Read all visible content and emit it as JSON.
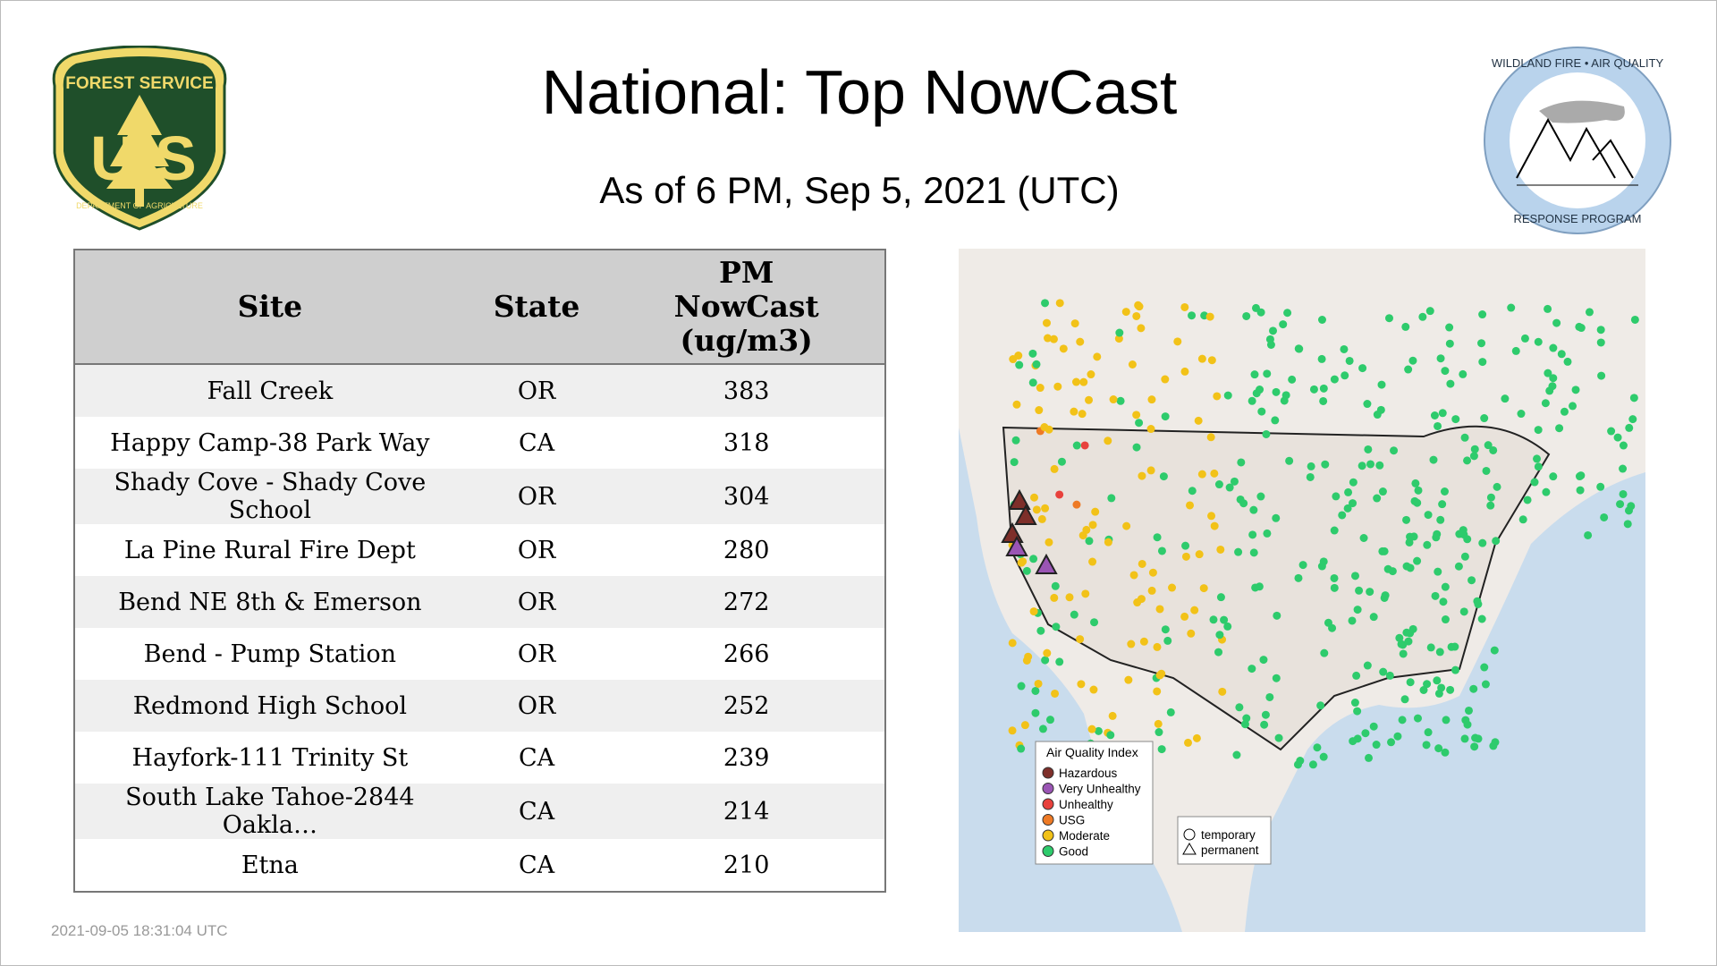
{
  "header": {
    "title": "National: Top NowCast",
    "subtitle": "As of  6 PM, Sep  5, 2021 (UTC)"
  },
  "logos": {
    "forest_service": {
      "top": "FOREST SERVICE",
      "letters": [
        "U",
        "S"
      ],
      "bottom": "DEPARTMENT OF AGRICULTURE"
    },
    "wildland": {
      "top": "WILDLAND FIRE • AIR QUALITY",
      "bottom": "RESPONSE PROGRAM"
    }
  },
  "table": {
    "columns": [
      "Site",
      "State",
      "PM NowCast (ug/m3)"
    ],
    "rows": [
      [
        "Fall Creek",
        "OR",
        383
      ],
      [
        "Happy Camp-38 Park Way",
        "CA",
        318
      ],
      [
        "Shady Cove - Shady Cove School",
        "OR",
        304
      ],
      [
        "La Pine Rural Fire Dept",
        "OR",
        280
      ],
      [
        "Bend NE 8th & Emerson",
        "OR",
        272
      ],
      [
        "Bend - Pump Station",
        "OR",
        266
      ],
      [
        "Redmond High School",
        "OR",
        252
      ],
      [
        "Hayfork-111 Trinity St",
        "CA",
        239
      ],
      [
        "South Lake Tahoe-2844 Oakla…",
        "CA",
        214
      ],
      [
        "Etna",
        "CA",
        210
      ]
    ]
  },
  "map": {
    "legend": {
      "title": "Air Quality Index",
      "items": [
        {
          "label": "Hazardous",
          "color": "#7e2f2a"
        },
        {
          "label": "Very Unhealthy",
          "color": "#9a55b4"
        },
        {
          "label": "Unhealthy",
          "color": "#e8413c"
        },
        {
          "label": "USG",
          "color": "#ee7a25"
        },
        {
          "label": "Moderate",
          "color": "#f2c218"
        },
        {
          "label": "Good",
          "color": "#2ecb6c"
        }
      ]
    },
    "shape_legend": [
      "temporary",
      "permanent"
    ]
  },
  "footer": {
    "timestamp": "2021-09-05 18:31:04 UTC"
  }
}
